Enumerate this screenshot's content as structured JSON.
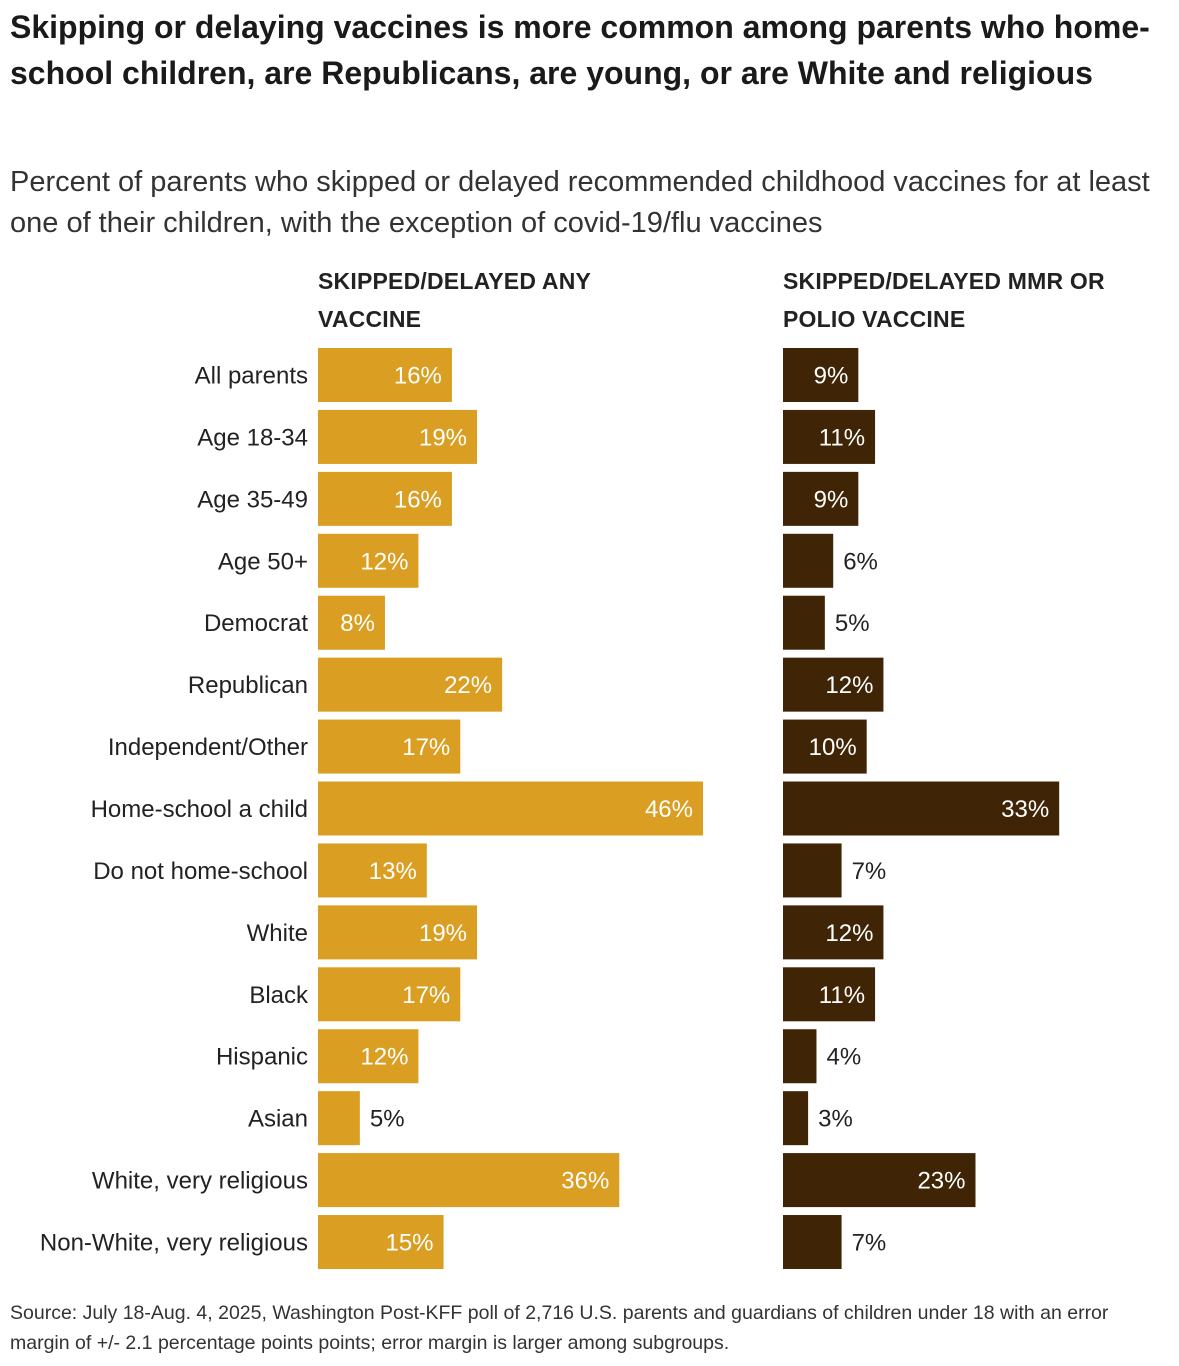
{
  "title": "Skipping or delaying vaccines is more common among parents who home-school children, are Republicans, are young, or are White and religious",
  "subtitle": "Percent of parents who skipped or delayed recommended childhood vaccines for at least one of their children, with the exception of covid-19/flu vaccines",
  "source": "Source: July 18-Aug. 4, 2025, Washington Post-KFF poll of 2,716 U.S. parents and guardians of children under 18 with an error margin of +/- 2.1 percentage points points; error margin is larger among subgroups.",
  "chart_data": {
    "type": "bar",
    "orientation": "horizontal",
    "categories": [
      "All parents",
      "Age 18-34",
      "Age 35-49",
      "Age 50+",
      "Democrat",
      "Republican",
      "Independent/Other",
      "Home-school a child",
      "Do not home-school",
      "White",
      "Black",
      "Hispanic",
      "Asian",
      "White, very religious",
      "Non-White, very religious"
    ],
    "series": [
      {
        "name": "SKIPPED/DELAYED ANY VACCINE",
        "color": "#d99e22",
        "values": [
          16,
          19,
          16,
          12,
          8,
          22,
          17,
          46,
          13,
          19,
          17,
          12,
          5,
          36,
          15
        ],
        "labels": [
          "16%",
          "19%",
          "16%",
          "12%",
          "8%",
          "22%",
          "17%",
          "46%",
          "13%",
          "19%",
          "17%",
          "12%",
          "5%",
          "36%",
          "15%"
        ]
      },
      {
        "name": "SKIPPED/DELAYED MMR OR POLIO VACCINE",
        "color": "#3f2506",
        "values": [
          9,
          11,
          9,
          6,
          5,
          12,
          10,
          33,
          7,
          12,
          11,
          4,
          3,
          23,
          7
        ],
        "labels": [
          "9%",
          "11%",
          "9%",
          "6%",
          "5%",
          "12%",
          "10%",
          "33%",
          "7%",
          "12%",
          "11%",
          "4%",
          "3%",
          "23%",
          "7%"
        ]
      }
    ],
    "xlim": [
      0,
      46
    ]
  }
}
